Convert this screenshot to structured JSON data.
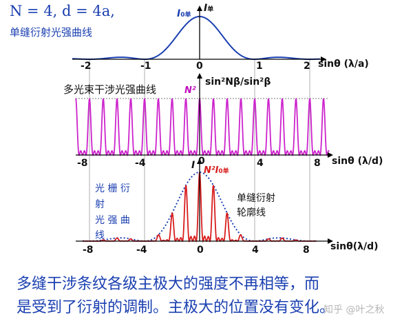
{
  "top_panel": {
    "param_text": "N = 4, d = 4a,",
    "caption": "单缝衍射光强曲线",
    "i0_label": "I",
    "i0_sub": "0单",
    "i_label": "I",
    "i_sub": "单",
    "axis_label": "sinθ (λ/a)",
    "ticks": [
      "-2",
      "-1",
      "0",
      "1",
      "2"
    ]
  },
  "middle_panel": {
    "caption": "多光束干涉光强曲线",
    "n2_label": "N²",
    "formula": "sin²Nβ/sin²β",
    "axis_label": "sinθ (λ/d)",
    "ticks": [
      "-8",
      "-4",
      "0",
      "4",
      "8"
    ]
  },
  "bottom_panel": {
    "i_label": "I",
    "top_tick": "0",
    "n2i0_label": "N²I",
    "n2i0_sub": "0单",
    "left_caption": [
      "光 栅 衍",
      "射",
      "光 强 曲",
      "线"
    ],
    "right_caption": [
      "单缝衍射",
      "轮廓线"
    ],
    "axis_label": "sinθ(λ/d)",
    "ticks": [
      "-8",
      "-4",
      "0",
      "4",
      "8"
    ]
  },
  "footer": {
    "line1": "多缝干涉条纹各级主极大的强度不再相等，而",
    "line2": "是受到了衍射的调制。主极大的位置没有变化。",
    "watermark": "知乎 @叶之秋"
  },
  "colors": {
    "curve": "#1a3fb0",
    "interference": "#cc22cc",
    "grating": "#d81c1c",
    "envelope": "#1a3fb0",
    "axis": "#000000",
    "guide": "#999999"
  }
}
